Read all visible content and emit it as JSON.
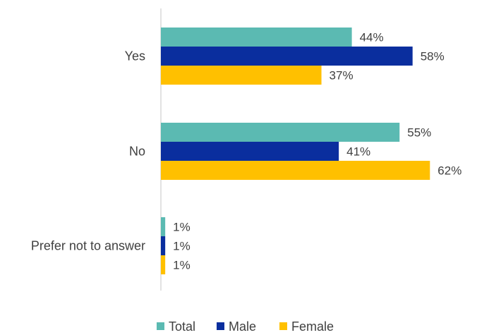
{
  "chart_data": {
    "type": "bar",
    "orientation": "horizontal",
    "categories": [
      "Yes",
      "No",
      "Prefer not to answer"
    ],
    "series": [
      {
        "name": "Total",
        "values": [
          44,
          55,
          1
        ],
        "color": "#5BBAB2"
      },
      {
        "name": "Male",
        "values": [
          58,
          41,
          1
        ],
        "color": "#0A2E9E"
      },
      {
        "name": "Female",
        "values": [
          37,
          62,
          1
        ],
        "color": "#FFC000"
      }
    ],
    "value_suffix": "%",
    "xlim": [
      0,
      100
    ],
    "grid": false,
    "legend_position": "bottom"
  }
}
